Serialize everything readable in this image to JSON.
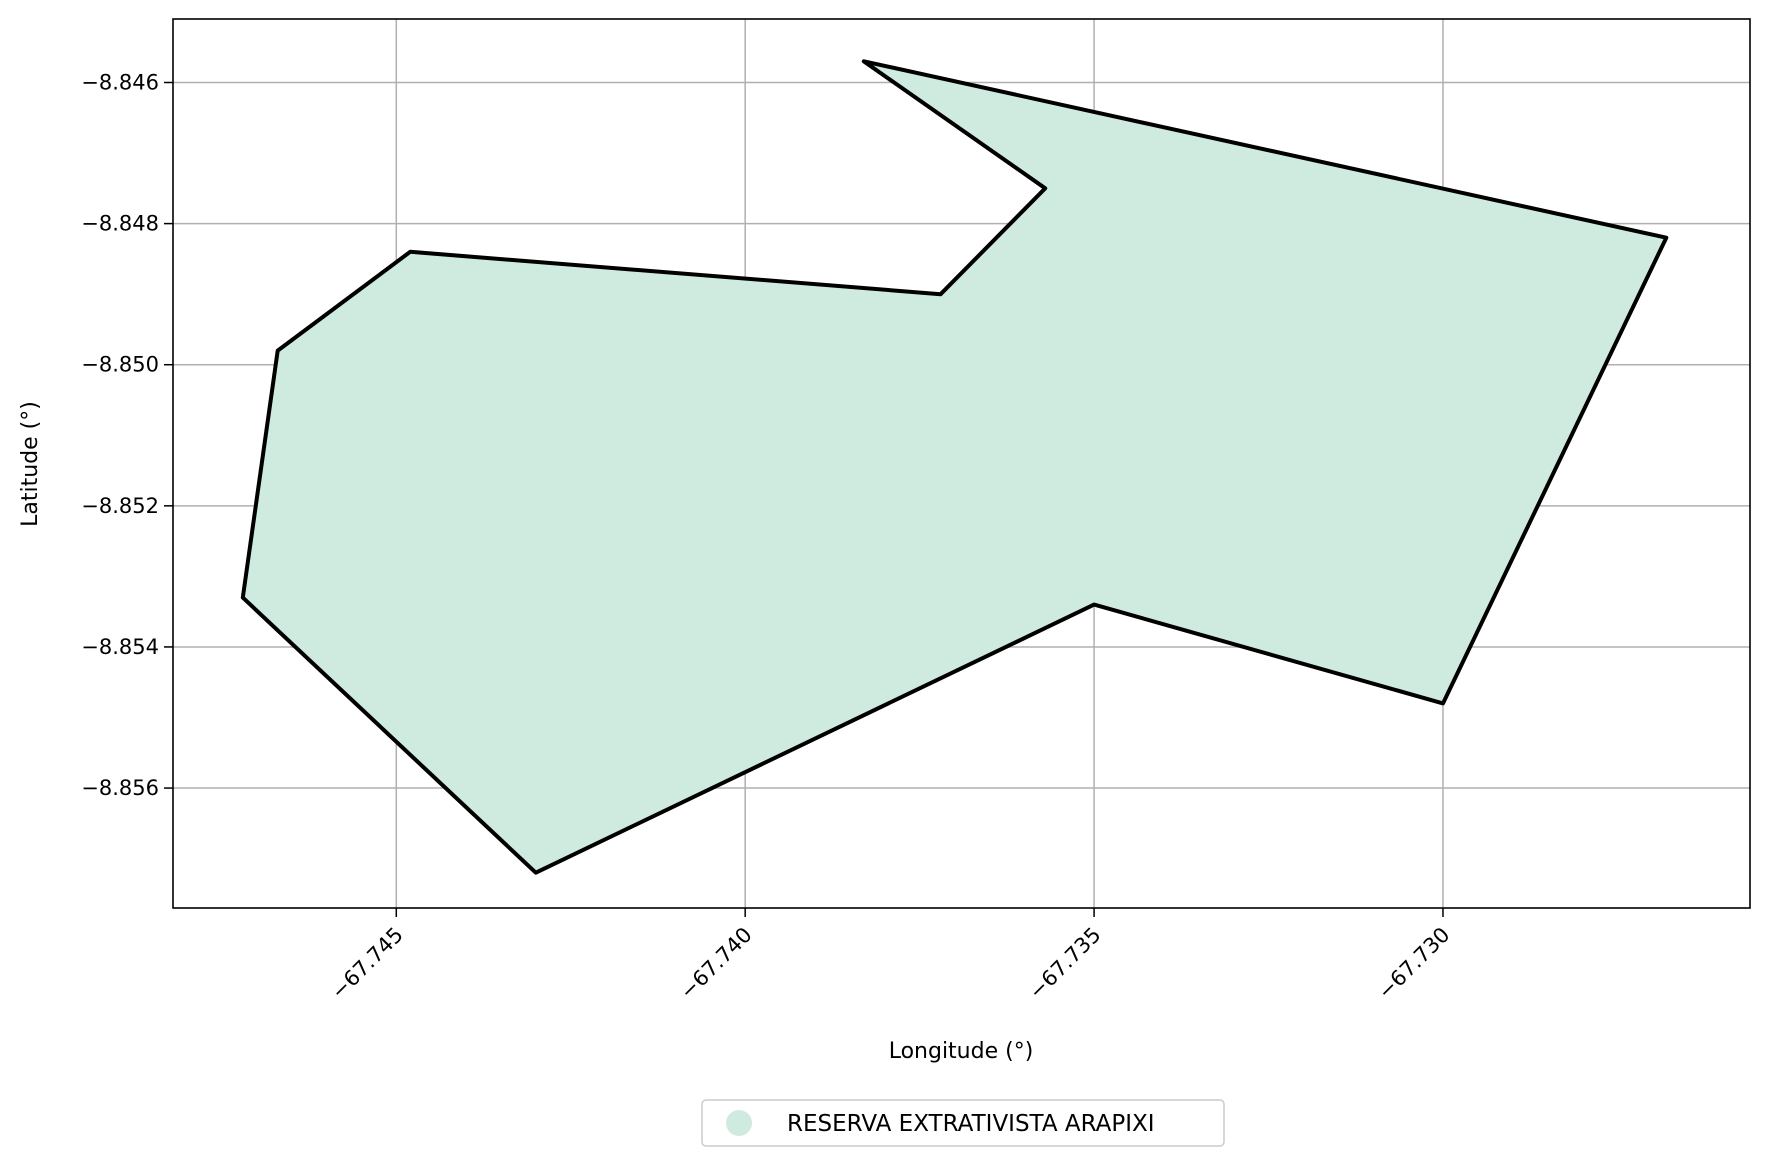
{
  "chart_data": {
    "type": "map",
    "xlabel": "Longitude (°)",
    "ylabel": "Latitude (°)",
    "xlim": [
      -67.7482,
      -67.7256
    ],
    "ylim": [
      -8.8577,
      -8.8451
    ],
    "grid": true,
    "x_ticks": [
      {
        "value": -67.745,
        "label": "−67.745"
      },
      {
        "value": -67.74,
        "label": "−67.740"
      },
      {
        "value": -67.735,
        "label": "−67.735"
      },
      {
        "value": -67.73,
        "label": "−67.730"
      }
    ],
    "y_ticks": [
      {
        "value": -8.846,
        "label": "−8.846"
      },
      {
        "value": -8.848,
        "label": "−8.848"
      },
      {
        "value": -8.85,
        "label": "−8.850"
      },
      {
        "value": -8.852,
        "label": "−8.852"
      },
      {
        "value": -8.854,
        "label": "−8.854"
      },
      {
        "value": -8.856,
        "label": "−8.856"
      }
    ],
    "legend_position": "bottom-center",
    "features": [
      {
        "name": "RESERVA EXTRATIVISTA ARAPIXI",
        "fill_color": "#cfebdf",
        "edge_color": "#000000",
        "coordinates": [
          [
            -67.7383,
            -8.8457
          ],
          [
            -67.7268,
            -8.8482
          ],
          [
            -67.73,
            -8.8548
          ],
          [
            -67.735,
            -8.8534
          ],
          [
            -67.743,
            -8.8572
          ],
          [
            -67.7472,
            -8.8533
          ],
          [
            -67.7467,
            -8.8498
          ],
          [
            -67.7448,
            -8.8484
          ],
          [
            -67.7372,
            -8.849
          ],
          [
            -67.7357,
            -8.8475
          ],
          [
            -67.7383,
            -8.8457
          ]
        ]
      }
    ]
  },
  "colors": {
    "grid": "#b0b0b0",
    "axes": "#000000",
    "background": "#ffffff",
    "legend_border": "#cccccc"
  }
}
